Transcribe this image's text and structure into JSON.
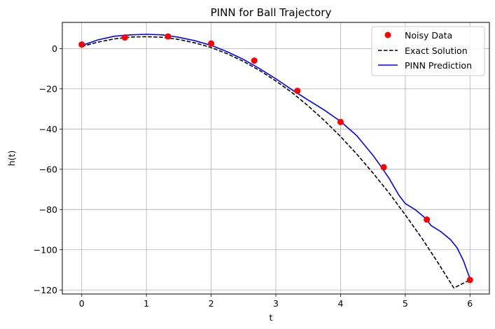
{
  "chart_data": {
    "type": "line",
    "title": "PINN for Ball Trajectory",
    "xlabel": "t",
    "ylabel": "h(t)",
    "xlim": [
      -0.3,
      6.3
    ],
    "ylim": [
      -122,
      13
    ],
    "xticks": [
      0,
      1,
      2,
      3,
      4,
      5,
      6
    ],
    "yticks": [
      0,
      -20,
      -40,
      -60,
      -80,
      -100,
      -120
    ],
    "grid": true,
    "legend_position": "top-right",
    "series": [
      {
        "name": "Noisy Data",
        "kind": "scatter",
        "color": "#ff0000",
        "x": [
          0,
          0.667,
          1.333,
          2.0,
          2.667,
          3.333,
          4.0,
          4.667,
          5.333,
          6.0
        ],
        "y": [
          2.0,
          5.5,
          6.0,
          2.5,
          -6.0,
          -21.0,
          -36.5,
          -59.0,
          -85.0,
          -115.0
        ]
      },
      {
        "name": "Exact Solution",
        "kind": "line",
        "style": "dashed",
        "color": "#000000",
        "x": [
          0,
          0.25,
          0.5,
          0.75,
          1.0,
          1.25,
          1.5,
          1.75,
          2.0,
          2.25,
          2.5,
          2.75,
          3.0,
          3.25,
          3.5,
          3.75,
          4.0,
          4.25,
          4.5,
          4.75,
          5.0,
          5.25,
          5.5,
          5.75,
          6.0
        ],
        "y": [
          1.0,
          3.2,
          4.8,
          5.7,
          5.9,
          5.6,
          4.5,
          2.8,
          0.5,
          -2.6,
          -6.4,
          -10.9,
          -16.1,
          -21.9,
          -28.5,
          -35.8,
          -43.7,
          -52.4,
          -61.8,
          -71.8,
          -82.6,
          -94.0,
          -106.2,
          -119.0,
          -115.0
        ]
      },
      {
        "name": "PINN Prediction",
        "kind": "line",
        "style": "solid",
        "color": "#0000ff",
        "x": [
          0,
          0.25,
          0.5,
          0.75,
          1.0,
          1.25,
          1.5,
          1.75,
          2.0,
          2.25,
          2.5,
          2.75,
          3.0,
          3.25,
          3.5,
          3.75,
          4.0,
          4.25,
          4.5,
          4.6,
          4.75,
          4.9,
          5.0,
          5.15,
          5.3,
          5.4,
          5.55,
          5.7,
          5.8,
          5.9,
          6.0
        ],
        "y": [
          1.5,
          4.3,
          6.1,
          6.8,
          7.1,
          6.8,
          5.6,
          3.9,
          1.6,
          -1.6,
          -5.4,
          -10.0,
          -15.0,
          -20.5,
          -25.6,
          -30.6,
          -36.2,
          -43.3,
          -53.0,
          -57.5,
          -64.5,
          -72.8,
          -77.0,
          -80.0,
          -84.0,
          -88.0,
          -91.0,
          -95.0,
          -99.0,
          -105.5,
          -114.5
        ]
      }
    ]
  }
}
